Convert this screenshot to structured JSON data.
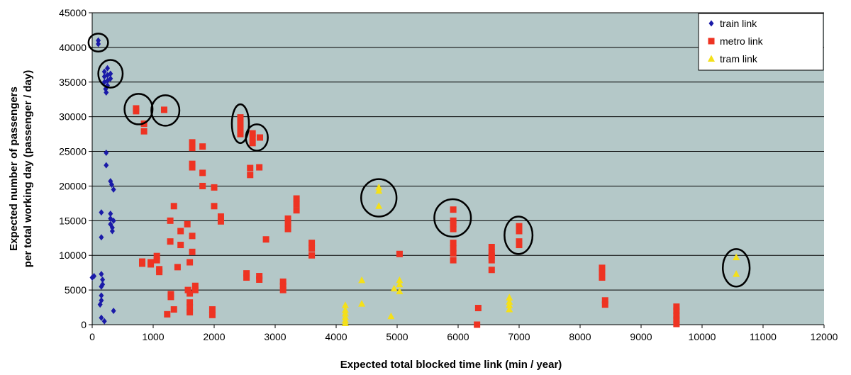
{
  "chart_data": {
    "type": "scatter",
    "title": "",
    "xlabel": "Expected total blocked time link (min / year)",
    "ylabel_line1": "Expected number of passengers",
    "ylabel_line2": "per total working day (passenger / day)",
    "xlim": [
      0,
      12000
    ],
    "ylim": [
      0,
      45000
    ],
    "x_ticks": [
      "0",
      "1000",
      "2000",
      "3000",
      "4000",
      "5000",
      "6000",
      "7000",
      "8000",
      "9000",
      "10000",
      "11000",
      "12000"
    ],
    "y_ticks": [
      "0",
      "5000",
      "10000",
      "15000",
      "20000",
      "25000",
      "30000",
      "35000",
      "40000",
      "45000"
    ],
    "grid": "horizontal",
    "legend_position": "top-right",
    "colors": {
      "train": "#1a1aa8",
      "metro": "#ee3322",
      "tram": "#f4e01a",
      "plot_bg": "#b4c8c8"
    },
    "series": [
      {
        "name": "train link",
        "marker": "diamond",
        "color": "#1a1aa8",
        "points": [
          [
            100,
            41000
          ],
          [
            100,
            40500
          ],
          [
            250,
            37000
          ],
          [
            200,
            36500
          ],
          [
            300,
            36200
          ],
          [
            250,
            36000
          ],
          [
            200,
            35800
          ],
          [
            300,
            35500
          ],
          [
            250,
            35200
          ],
          [
            200,
            35000
          ],
          [
            250,
            34500
          ],
          [
            220,
            34000
          ],
          [
            230,
            33500
          ],
          [
            230,
            24800
          ],
          [
            230,
            23000
          ],
          [
            300,
            20700
          ],
          [
            320,
            20200
          ],
          [
            350,
            19500
          ],
          [
            150,
            16200
          ],
          [
            300,
            16000
          ],
          [
            300,
            15300
          ],
          [
            350,
            15000
          ],
          [
            300,
            14500
          ],
          [
            330,
            14000
          ],
          [
            330,
            13500
          ],
          [
            150,
            12600
          ],
          [
            30,
            7000
          ],
          [
            0,
            6800
          ],
          [
            150,
            7300
          ],
          [
            170,
            6500
          ],
          [
            170,
            5800
          ],
          [
            150,
            5500
          ],
          [
            150,
            4200
          ],
          [
            150,
            3500
          ],
          [
            130,
            2900
          ],
          [
            350,
            2000
          ],
          [
            150,
            1000
          ],
          [
            200,
            500
          ]
        ]
      },
      {
        "name": "metro link",
        "marker": "square",
        "color": "#ee3322",
        "points": [
          [
            720,
            31200
          ],
          [
            720,
            30800
          ],
          [
            850,
            29000
          ],
          [
            850,
            27900
          ],
          [
            1180,
            31000
          ],
          [
            2430,
            29900
          ],
          [
            2430,
            29000
          ],
          [
            2430,
            28200
          ],
          [
            2430,
            27500
          ],
          [
            2630,
            27600
          ],
          [
            2630,
            27000
          ],
          [
            2630,
            26200
          ],
          [
            2750,
            27000
          ],
          [
            1640,
            26300
          ],
          [
            1640,
            25500
          ],
          [
            1640,
            23200
          ],
          [
            1640,
            22700
          ],
          [
            1810,
            25700
          ],
          [
            1810,
            21900
          ],
          [
            1810,
            20000
          ],
          [
            2000,
            19800
          ],
          [
            2000,
            17100
          ],
          [
            2110,
            15600
          ],
          [
            2110,
            14900
          ],
          [
            2590,
            22600
          ],
          [
            2590,
            21600
          ],
          [
            2740,
            22700
          ],
          [
            1340,
            17100
          ],
          [
            1280,
            15000
          ],
          [
            1280,
            12000
          ],
          [
            1450,
            13500
          ],
          [
            1450,
            11500
          ],
          [
            1560,
            14500
          ],
          [
            1640,
            12800
          ],
          [
            1640,
            10500
          ],
          [
            1600,
            9000
          ],
          [
            820,
            9100
          ],
          [
            820,
            8800
          ],
          [
            960,
            9000
          ],
          [
            960,
            8700
          ],
          [
            1060,
            9900
          ],
          [
            1060,
            9300
          ],
          [
            1100,
            8000
          ],
          [
            1100,
            7600
          ],
          [
            1400,
            8300
          ],
          [
            1290,
            4400
          ],
          [
            1290,
            4000
          ],
          [
            1340,
            2200
          ],
          [
            1230,
            1500
          ],
          [
            1570,
            5000
          ],
          [
            1600,
            4500
          ],
          [
            1600,
            3200
          ],
          [
            1600,
            2500
          ],
          [
            1600,
            1800
          ],
          [
            1690,
            5600
          ],
          [
            1690,
            5000
          ],
          [
            1970,
            2200
          ],
          [
            1970,
            1400
          ],
          [
            2530,
            7400
          ],
          [
            2530,
            6800
          ],
          [
            2740,
            7000
          ],
          [
            2740,
            6500
          ],
          [
            2850,
            12300
          ],
          [
            3130,
            6200
          ],
          [
            3130,
            5600
          ],
          [
            3130,
            5000
          ],
          [
            3210,
            15300
          ],
          [
            3210,
            14600
          ],
          [
            3210,
            13800
          ],
          [
            3350,
            18200
          ],
          [
            3350,
            17400
          ],
          [
            3350,
            16500
          ],
          [
            3600,
            11800
          ],
          [
            3600,
            11000
          ],
          [
            3600,
            10000
          ],
          [
            5040,
            10200
          ],
          [
            5920,
            16600
          ],
          [
            5920,
            15000
          ],
          [
            5920,
            14500
          ],
          [
            5920,
            13800
          ],
          [
            5920,
            11800
          ],
          [
            5920,
            11000
          ],
          [
            5920,
            10300
          ],
          [
            5920,
            9300
          ],
          [
            6330,
            2400
          ],
          [
            6310,
            0
          ],
          [
            6550,
            11200
          ],
          [
            6550,
            10400
          ],
          [
            6550,
            9900
          ],
          [
            6550,
            9300
          ],
          [
            6550,
            7900
          ],
          [
            7000,
            14200
          ],
          [
            7000,
            13500
          ],
          [
            7000,
            12000
          ],
          [
            7000,
            11500
          ],
          [
            8360,
            8200
          ],
          [
            8360,
            7600
          ],
          [
            8360,
            6800
          ],
          [
            8410,
            3500
          ],
          [
            8410,
            2900
          ],
          [
            9580,
            2600
          ],
          [
            9580,
            2000
          ],
          [
            9580,
            1300
          ],
          [
            9580,
            700
          ],
          [
            9580,
            100
          ]
        ]
      },
      {
        "name": "tram link",
        "marker": "triangle",
        "color": "#f4e01a",
        "points": [
          [
            4700,
            19800
          ],
          [
            4700,
            19300
          ],
          [
            4700,
            17100
          ],
          [
            4150,
            2800
          ],
          [
            4150,
            2100
          ],
          [
            4150,
            1600
          ],
          [
            4150,
            1100
          ],
          [
            4150,
            600
          ],
          [
            4150,
            200
          ],
          [
            4420,
            6400
          ],
          [
            4420,
            3000
          ],
          [
            4950,
            5200
          ],
          [
            5040,
            6400
          ],
          [
            5040,
            5800
          ],
          [
            5040,
            4800
          ],
          [
            4900,
            1200
          ],
          [
            6840,
            3900
          ],
          [
            6840,
            3300
          ],
          [
            6840,
            2800
          ],
          [
            6840,
            2200
          ],
          [
            10560,
            9700
          ],
          [
            10560,
            7300
          ]
        ]
      }
    ],
    "annotations": [
      {
        "type": "circle",
        "cx": 100,
        "cy": 40700,
        "rx": 160,
        "ry": 1300
      },
      {
        "type": "circle",
        "cx": 300,
        "cy": 36200,
        "rx": 200,
        "ry": 2000
      },
      {
        "type": "circle",
        "cx": 760,
        "cy": 31100,
        "rx": 230,
        "ry": 2200
      },
      {
        "type": "circle",
        "cx": 1200,
        "cy": 30900,
        "rx": 230,
        "ry": 2200
      },
      {
        "type": "circle",
        "cx": 2430,
        "cy": 29000,
        "rx": 140,
        "ry": 2800
      },
      {
        "type": "circle",
        "cx": 2700,
        "cy": 27000,
        "rx": 180,
        "ry": 1900
      },
      {
        "type": "circle",
        "cx": 4700,
        "cy": 18300,
        "rx": 290,
        "ry": 2700
      },
      {
        "type": "circle",
        "cx": 5910,
        "cy": 15400,
        "rx": 300,
        "ry": 2700
      },
      {
        "type": "circle",
        "cx": 6990,
        "cy": 12900,
        "rx": 230,
        "ry": 2700
      },
      {
        "type": "circle",
        "cx": 10560,
        "cy": 8200,
        "rx": 220,
        "ry": 2700
      }
    ]
  }
}
